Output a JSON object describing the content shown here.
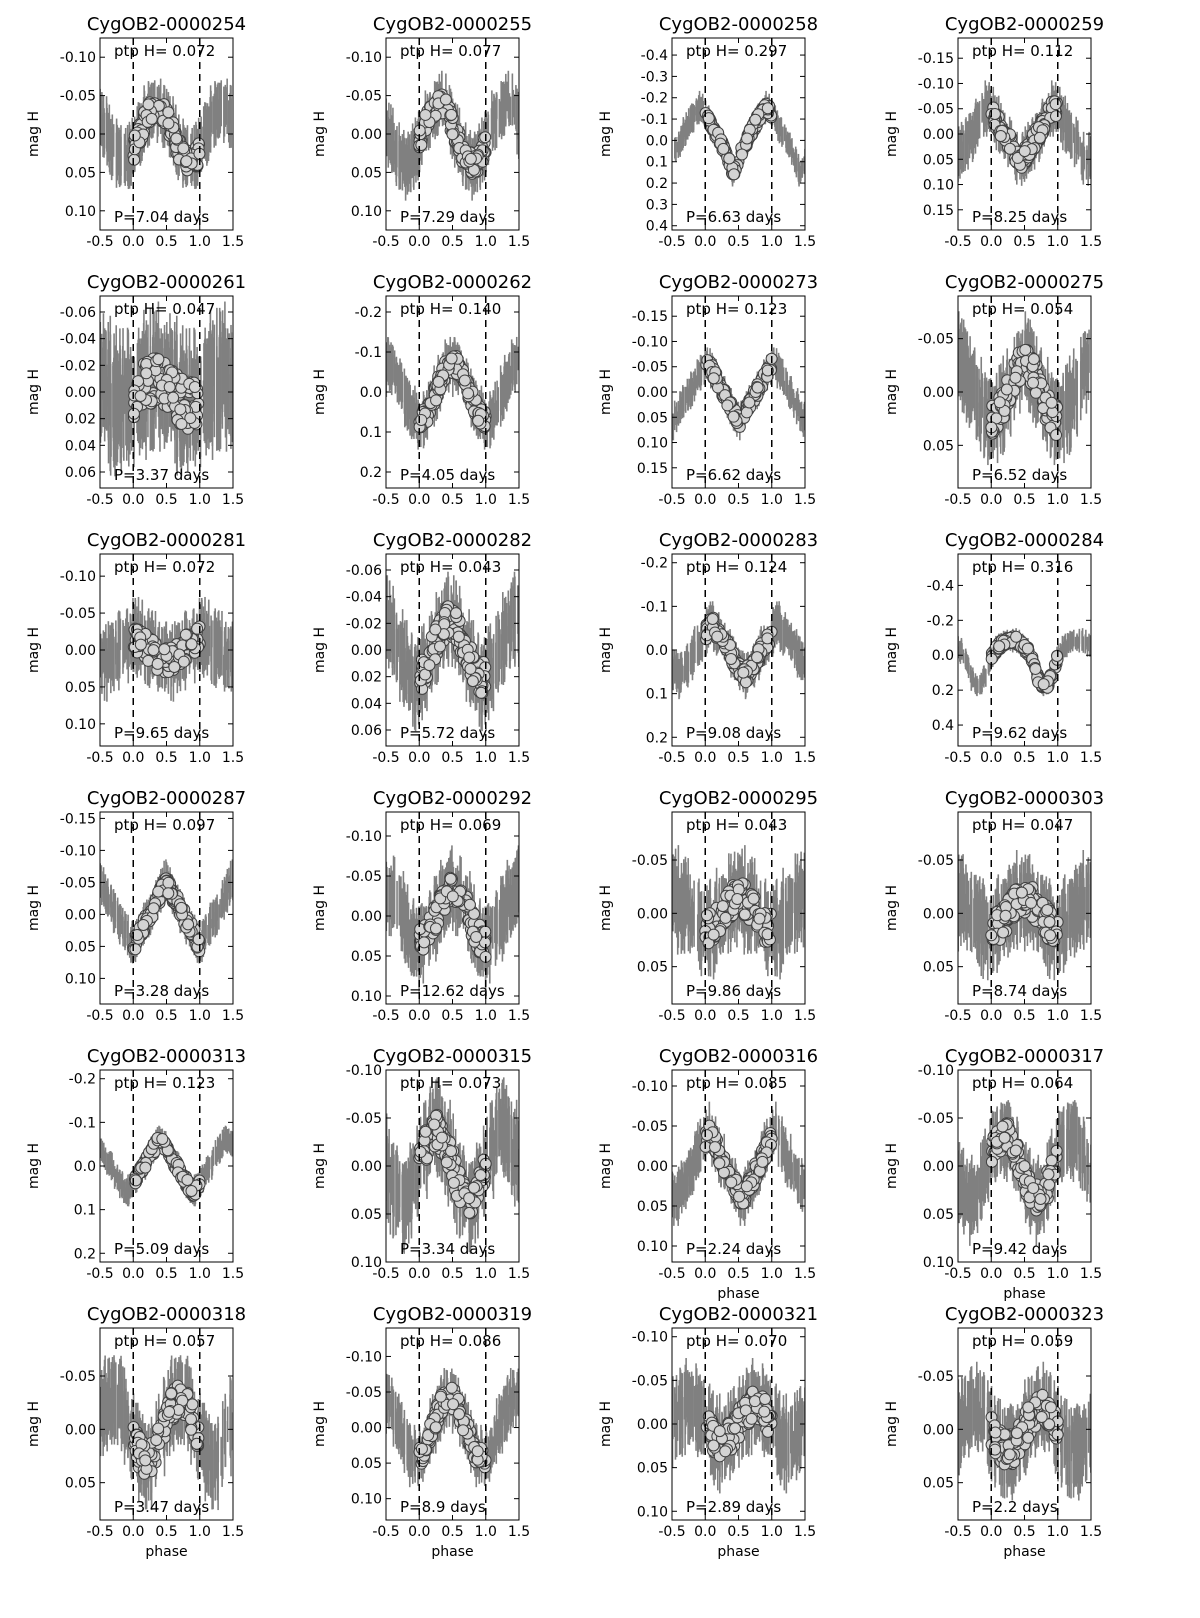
{
  "figure": {
    "x_axis": "phase",
    "y_axis": "mag H",
    "ptp_label": "ptp H=",
    "period_prefix": "P=",
    "period_suffix": " days",
    "colors": {
      "error_bar": "#808080",
      "marker_fill": "#d3d3d3",
      "marker_edge": "#404040",
      "axes": "#000000"
    }
  },
  "chart_data": [
    {
      "type": "scatter",
      "title": "CygOB2-0000254",
      "ptp": "0.072",
      "period": "7.04",
      "ylim": [
        0.125,
        -0.125
      ],
      "yticks": [
        "-0.10",
        "-0.05",
        "0.00",
        "0.05",
        "0.10"
      ],
      "xticks": [
        "-0.5",
        "0.0",
        "0.5",
        "1.0",
        "1.5"
      ],
      "xlabel": "",
      "ylabel": "mag H",
      "amp": 0.036,
      "shape": "sine",
      "peak_phase": 0.35,
      "noise": 0.025
    },
    {
      "type": "scatter",
      "title": "CygOB2-0000255",
      "ptp": "0.077",
      "period": "7.29",
      "ylim": [
        0.125,
        -0.125
      ],
      "yticks": [
        "-0.10",
        "-0.05",
        "0.00",
        "0.05",
        "0.10"
      ],
      "xticks": [
        "-0.5",
        "0.0",
        "0.5",
        "1.0",
        "1.5"
      ],
      "xlabel": "",
      "ylabel": "mag H",
      "amp": 0.038,
      "shape": "sine",
      "peak_phase": 0.3,
      "noise": 0.025
    },
    {
      "type": "scatter",
      "title": "CygOB2-0000258",
      "ptp": "0.297",
      "period": "6.63",
      "ylim": [
        0.42,
        -0.48
      ],
      "yticks": [
        "-0.4",
        "-0.3",
        "-0.2",
        "-0.1",
        "0.0",
        "0.1",
        "0.2",
        "0.3",
        "0.4"
      ],
      "xticks": [
        "-0.5",
        "0.0",
        "0.5",
        "1.0",
        "1.5"
      ],
      "xlabel": "",
      "ylabel": "mag H",
      "amp": 0.15,
      "shape": "dip",
      "peak_phase": 0.92,
      "noise": 0.04
    },
    {
      "type": "scatter",
      "title": "CygOB2-0000259",
      "ptp": "0.112",
      "period": "8.25",
      "ylim": [
        0.19,
        -0.19
      ],
      "yticks": [
        "-0.15",
        "-0.10",
        "-0.05",
        "0.00",
        "0.05",
        "0.10",
        "0.15"
      ],
      "xticks": [
        "-0.5",
        "0.0",
        "0.5",
        "1.0",
        "1.5"
      ],
      "xlabel": "",
      "ylabel": "mag H",
      "amp": 0.056,
      "shape": "vee",
      "peak_phase": 0.95,
      "noise": 0.03
    },
    {
      "type": "scatter",
      "title": "CygOB2-0000261",
      "ptp": "0.047",
      "period": "3.37",
      "ylim": [
        0.072,
        -0.072
      ],
      "yticks": [
        "-0.06",
        "-0.04",
        "-0.02",
        "0.00",
        "0.02",
        "0.04",
        "0.06"
      ],
      "xticks": [
        "-0.5",
        "0.0",
        "0.5",
        "1.0",
        "1.5"
      ],
      "xlabel": "",
      "ylabel": "mag H",
      "amp": 0.01,
      "shape": "sine",
      "peak_phase": 0.35,
      "noise": 0.03
    },
    {
      "type": "scatter",
      "title": "CygOB2-0000262",
      "ptp": "0.140",
      "period": "4.05",
      "ylim": [
        0.24,
        -0.24
      ],
      "yticks": [
        "-0.2",
        "-0.1",
        "0.0",
        "0.1",
        "0.2"
      ],
      "xticks": [
        "-0.5",
        "0.0",
        "0.5",
        "1.0",
        "1.5"
      ],
      "xlabel": "",
      "ylabel": "mag H",
      "amp": 0.07,
      "shape": "sine",
      "peak_phase": 0.5,
      "noise": 0.04
    },
    {
      "type": "scatter",
      "title": "CygOB2-0000273",
      "ptp": "0.123",
      "period": "6.62",
      "ylim": [
        0.19,
        -0.19
      ],
      "yticks": [
        "-0.15",
        "-0.10",
        "-0.05",
        "0.00",
        "0.05",
        "0.10",
        "0.15"
      ],
      "xticks": [
        "-0.5",
        "0.0",
        "0.5",
        "1.0",
        "1.5"
      ],
      "xlabel": "",
      "ylabel": "mag H",
      "amp": 0.062,
      "shape": "vee",
      "peak_phase": 0.02,
      "noise": 0.02
    },
    {
      "type": "scatter",
      "title": "CygOB2-0000275",
      "ptp": "0.054",
      "period": "6.52",
      "ylim": [
        0.09,
        -0.09
      ],
      "yticks": [
        "-0.05",
        "0.00",
        "0.05"
      ],
      "xticks": [
        "-0.5",
        "0.0",
        "0.5",
        "1.0",
        "1.5"
      ],
      "xlabel": "",
      "ylabel": "mag H",
      "amp": 0.027,
      "shape": "sine",
      "peak_phase": 0.5,
      "noise": 0.025
    },
    {
      "type": "scatter",
      "title": "CygOB2-0000281",
      "ptp": "0.072",
      "period": "9.65",
      "ylim": [
        0.13,
        -0.13
      ],
      "yticks": [
        "-0.10",
        "-0.05",
        "0.00",
        "0.05",
        "0.10"
      ],
      "xticks": [
        "-0.5",
        "0.0",
        "0.5",
        "1.0",
        "1.5"
      ],
      "xlabel": "",
      "ylabel": "mag H",
      "amp": 0.015,
      "shape": "sine",
      "peak_phase": 0.0,
      "noise": 0.03
    },
    {
      "type": "scatter",
      "title": "CygOB2-0000282",
      "ptp": "0.043",
      "period": "5.72",
      "ylim": [
        0.072,
        -0.072
      ],
      "yticks": [
        "-0.06",
        "-0.04",
        "-0.02",
        "0.00",
        "0.02",
        "0.04",
        "0.06"
      ],
      "xticks": [
        "-0.5",
        "0.0",
        "0.5",
        "1.0",
        "1.5"
      ],
      "xlabel": "",
      "ylabel": "mag H",
      "amp": 0.021,
      "shape": "sine",
      "peak_phase": 0.45,
      "noise": 0.02
    },
    {
      "type": "scatter",
      "title": "CygOB2-0000283",
      "ptp": "0.124",
      "period": "9.08",
      "ylim": [
        0.22,
        -0.22
      ],
      "yticks": [
        "-0.2",
        "-0.1",
        "0.0",
        "0.1",
        "0.2"
      ],
      "xticks": [
        "-0.5",
        "0.0",
        "0.5",
        "1.0",
        "1.5"
      ],
      "xlabel": "",
      "ylabel": "mag H",
      "amp": 0.062,
      "shape": "vee",
      "peak_phase": 0.1,
      "noise": 0.03
    },
    {
      "type": "scatter",
      "title": "CygOB2-0000284",
      "ptp": "0.316",
      "period": "9.62",
      "ylim": [
        0.52,
        -0.58
      ],
      "yticks": [
        "-0.4",
        "-0.2",
        "0.0",
        "0.2",
        "0.4"
      ],
      "xticks": [
        "-0.5",
        "0.0",
        "0.5",
        "1.0",
        "1.5"
      ],
      "xlabel": "",
      "ylabel": "mag H",
      "amp": 0.15,
      "shape": "drop",
      "peak_phase": 0.3,
      "noise": 0.04
    },
    {
      "type": "scatter",
      "title": "CygOB2-0000287",
      "ptp": "0.097",
      "period": "3.28",
      "ylim": [
        0.14,
        -0.16
      ],
      "yticks": [
        "-0.15",
        "-0.10",
        "-0.05",
        "0.00",
        "0.05",
        "0.10"
      ],
      "xticks": [
        "-0.5",
        "0.0",
        "0.5",
        "1.0",
        "1.5"
      ],
      "xlabel": "",
      "ylabel": "mag H",
      "amp": 0.05,
      "shape": "tri",
      "peak_phase": 0.5,
      "noise": 0.02
    },
    {
      "type": "scatter",
      "title": "CygOB2-0000292",
      "ptp": "0.069",
      "period": "12.62",
      "ylim": [
        0.11,
        -0.13
      ],
      "yticks": [
        "-0.10",
        "-0.05",
        "0.00",
        "0.05",
        "0.10"
      ],
      "xticks": [
        "-0.5",
        "0.0",
        "0.5",
        "1.0",
        "1.5"
      ],
      "xlabel": "",
      "ylabel": "mag H",
      "amp": 0.034,
      "shape": "sine",
      "peak_phase": 0.5,
      "noise": 0.03
    },
    {
      "type": "scatter",
      "title": "CygOB2-0000295",
      "ptp": "0.043",
      "period": "9.86",
      "ylim": [
        0.085,
        -0.095
      ],
      "yticks": [
        "-0.05",
        "0.00",
        "0.05"
      ],
      "xticks": [
        "-0.5",
        "0.0",
        "0.5",
        "1.0",
        "1.5"
      ],
      "xlabel": "",
      "ylabel": "mag H",
      "amp": 0.015,
      "shape": "sine",
      "peak_phase": 0.5,
      "noise": 0.025
    },
    {
      "type": "scatter",
      "title": "CygOB2-0000303",
      "ptp": "0.047",
      "period": "8.74",
      "ylim": [
        0.085,
        -0.095
      ],
      "yticks": [
        "-0.05",
        "0.00",
        "0.05"
      ],
      "xticks": [
        "-0.5",
        "0.0",
        "0.5",
        "1.0",
        "1.5"
      ],
      "xlabel": "",
      "ylabel": "mag H",
      "amp": 0.015,
      "shape": "sine",
      "peak_phase": 0.5,
      "noise": 0.025
    },
    {
      "type": "scatter",
      "title": "CygOB2-0000313",
      "ptp": "0.123",
      "period": "5.09",
      "ylim": [
        0.22,
        -0.22
      ],
      "yticks": [
        "-0.2",
        "-0.1",
        "0.0",
        "0.1",
        "0.2"
      ],
      "xticks": [
        "-0.5",
        "0.0",
        "0.5",
        "1.0",
        "1.5"
      ],
      "xlabel": "",
      "ylabel": "mag H",
      "amp": 0.062,
      "shape": "tri",
      "peak_phase": 0.4,
      "noise": 0.02
    },
    {
      "type": "scatter",
      "title": "CygOB2-0000315",
      "ptp": "0.073",
      "period": "3.34",
      "ylim": [
        0.1,
        -0.1
      ],
      "yticks": [
        "-0.10",
        "-0.05",
        "0.00",
        "0.05",
        "0.10"
      ],
      "xticks": [
        "-0.5",
        "0.0",
        "0.5",
        "1.0",
        "1.5"
      ],
      "xlabel": "",
      "ylabel": "mag H",
      "amp": 0.036,
      "shape": "sine",
      "peak_phase": 0.25,
      "noise": 0.03
    },
    {
      "type": "scatter",
      "title": "CygOB2-0000316",
      "ptp": "0.085",
      "period": "2.24",
      "ylim": [
        0.12,
        -0.12
      ],
      "yticks": [
        "-0.10",
        "-0.05",
        "0.00",
        "0.05",
        "0.10"
      ],
      "xticks": [
        "-0.5",
        "0.0",
        "0.5",
        "1.0",
        "1.5"
      ],
      "xlabel": "phase",
      "ylabel": "mag H",
      "amp": 0.043,
      "shape": "vee",
      "peak_phase": 0.05,
      "noise": 0.02
    },
    {
      "type": "scatter",
      "title": "CygOB2-0000317",
      "ptp": "0.064",
      "period": "9.42",
      "ylim": [
        0.1,
        -0.1
      ],
      "yticks": [
        "-0.10",
        "-0.05",
        "0.00",
        "0.05",
        "0.10"
      ],
      "xticks": [
        "-0.5",
        "0.0",
        "0.5",
        "1.0",
        "1.5"
      ],
      "xlabel": "phase",
      "ylabel": "mag H",
      "amp": 0.032,
      "shape": "sine",
      "peak_phase": 0.2,
      "noise": 0.025
    },
    {
      "type": "scatter",
      "title": "CygOB2-0000318",
      "ptp": "0.057",
      "period": "3.47",
      "ylim": [
        0.085,
        -0.095
      ],
      "yticks": [
        "-0.05",
        "0.00",
        "0.05"
      ],
      "xticks": [
        "-0.5",
        "0.0",
        "0.5",
        "1.0",
        "1.5"
      ],
      "xlabel": "phase",
      "ylabel": "mag H",
      "amp": 0.028,
      "shape": "sine",
      "peak_phase": 0.7,
      "noise": 0.025
    },
    {
      "type": "scatter",
      "title": "CygOB2-0000319",
      "ptp": "0.086",
      "period": "8.9",
      "ylim": [
        0.13,
        -0.14
      ],
      "yticks": [
        "-0.10",
        "-0.05",
        "0.00",
        "0.05",
        "0.10"
      ],
      "xticks": [
        "-0.5",
        "0.0",
        "0.5",
        "1.0",
        "1.5"
      ],
      "xlabel": "phase",
      "ylabel": "mag H",
      "amp": 0.043,
      "shape": "sine",
      "peak_phase": 0.45,
      "noise": 0.025
    },
    {
      "type": "scatter",
      "title": "CygOB2-0000321",
      "ptp": "0.070",
      "period": "2.89",
      "ylim": [
        0.11,
        -0.11
      ],
      "yticks": [
        "-0.10",
        "-0.05",
        "0.00",
        "0.05",
        "0.10"
      ],
      "xticks": [
        "-0.5",
        "0.0",
        "0.5",
        "1.0",
        "1.5"
      ],
      "xlabel": "phase",
      "ylabel": "mag H",
      "amp": 0.02,
      "shape": "sine",
      "peak_phase": 0.75,
      "noise": 0.03
    },
    {
      "type": "scatter",
      "title": "CygOB2-0000323",
      "ptp": "0.059",
      "period": "2.2",
      "ylim": [
        0.085,
        -0.095
      ],
      "yticks": [
        "-0.05",
        "0.00",
        "0.05"
      ],
      "xticks": [
        "-0.5",
        "0.0",
        "0.5",
        "1.0",
        "1.5"
      ],
      "xlabel": "phase",
      "ylabel": "mag H",
      "amp": 0.02,
      "shape": "sine",
      "peak_phase": 0.75,
      "noise": 0.025
    }
  ]
}
